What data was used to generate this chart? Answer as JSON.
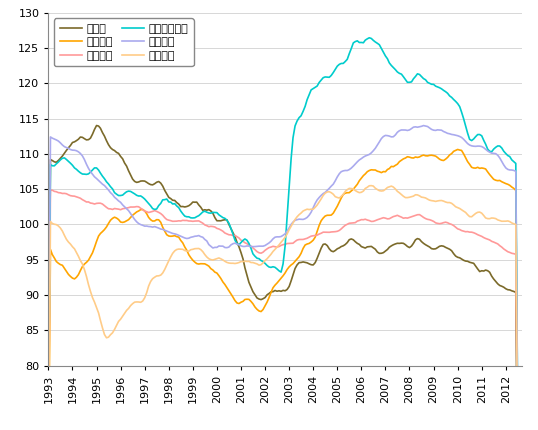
{
  "ylim": [
    80,
    130
  ],
  "yticks": [
    80,
    85,
    90,
    95,
    100,
    105,
    110,
    115,
    120,
    125,
    130
  ],
  "colors": {
    "germany": "#7B6A2A",
    "greece": "#FFA500",
    "france": "#FF9999",
    "ireland": "#00CCCC",
    "spain": "#AAAAEE",
    "italy": "#FFCC88"
  },
  "legend": {
    "germany": "ドイツ",
    "greece": "ギリシャ",
    "france": "フランス",
    "ireland": "アイルランド",
    "spain": "スペイン",
    "italy": "イタリア"
  }
}
